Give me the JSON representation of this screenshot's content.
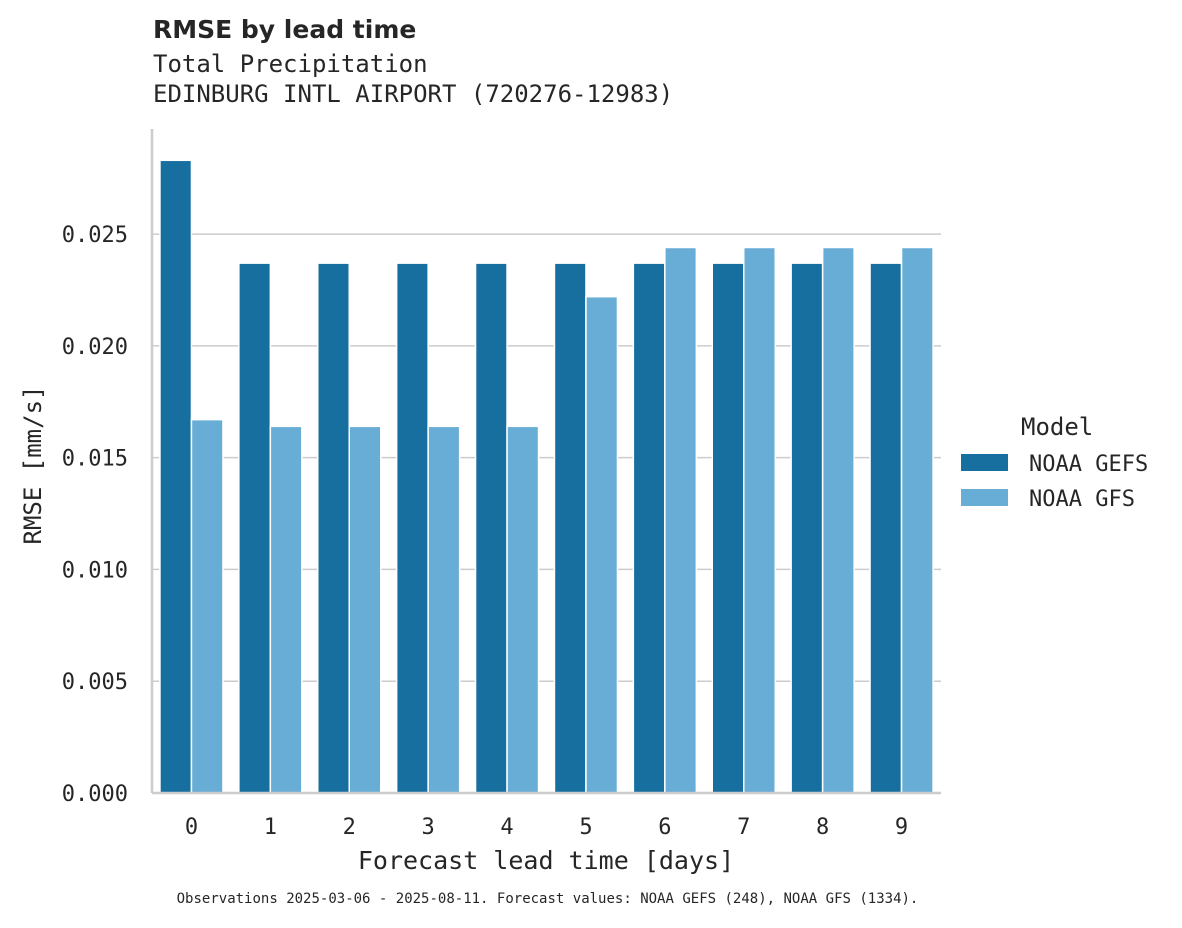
{
  "chart_data": {
    "type": "bar",
    "title": "RMSE by lead time",
    "subtitle_lines": [
      "Total Precipitation",
      "EDINBURG INTL AIRPORT (720276-12983)"
    ],
    "xlabel": "Forecast lead time [days]",
    "ylabel": "RMSE [mm/s]",
    "categories": [
      "0",
      "1",
      "2",
      "3",
      "4",
      "5",
      "6",
      "7",
      "8",
      "9"
    ],
    "ylim": [
      0,
      0.0297
    ],
    "yticks": [
      0.0,
      0.005,
      0.01,
      0.015,
      0.02,
      0.025
    ],
    "ytick_labels": [
      "0.000",
      "0.005",
      "0.010",
      "0.015",
      "0.020",
      "0.025"
    ],
    "grid": true,
    "legend": {
      "title": "Model",
      "position": "center-right"
    },
    "series": [
      {
        "name": "NOAA GEFS",
        "color": "#176fa0",
        "values": [
          0.0283,
          0.0237,
          0.0237,
          0.0237,
          0.0237,
          0.0237,
          0.0237,
          0.0237,
          0.0237,
          0.0237
        ]
      },
      {
        "name": "NOAA GFS",
        "color": "#67add5",
        "values": [
          0.0167,
          0.0164,
          0.0164,
          0.0164,
          0.0164,
          0.0222,
          0.0244,
          0.0244,
          0.0244,
          0.0244
        ]
      }
    ],
    "caption": "Observations 2025-03-06 - 2025-08-11. Forecast values: NOAA GEFS (248), NOAA GFS (1334)."
  }
}
